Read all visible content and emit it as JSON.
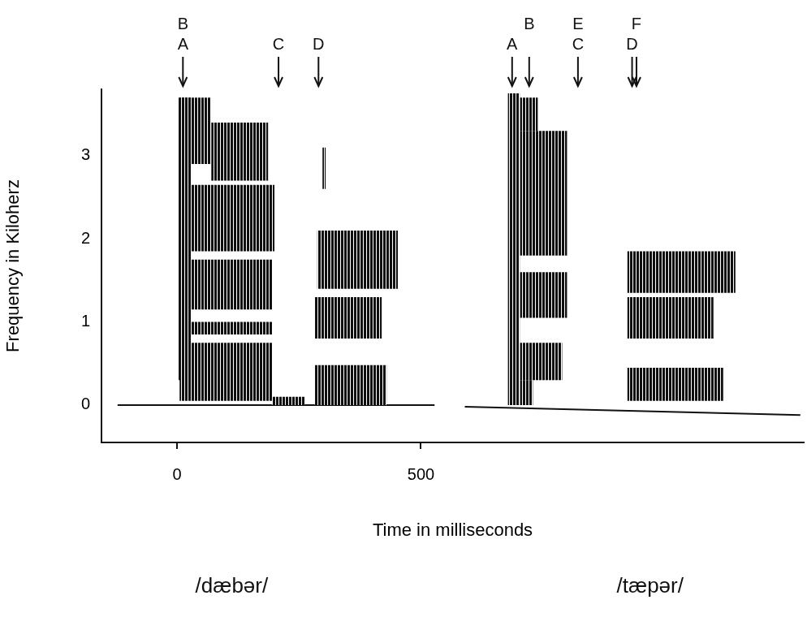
{
  "chart_data": {
    "type": "spectrogram",
    "xlabel": "Time in milliseconds",
    "ylabel": "Frequency in Kiloherz",
    "xlim": [
      -155,
      1285
    ],
    "xticks": [
      0,
      500
    ],
    "ylim": [
      -0.45,
      3.8
    ],
    "yticks": [
      0,
      1,
      2,
      3
    ],
    "grid": false,
    "color": "#111111",
    "regions": [
      {
        "x": [
          3,
          30
        ],
        "y": [
          0.3,
          3.7
        ]
      },
      {
        "x": [
          5,
          195
        ],
        "y": [
          0.05,
          0.75
        ]
      },
      {
        "x": [
          5,
          195
        ],
        "y": [
          0.85,
          1.0
        ]
      },
      {
        "x": [
          5,
          195
        ],
        "y": [
          1.15,
          1.75
        ]
      },
      {
        "x": [
          5,
          200
        ],
        "y": [
          1.85,
          2.65
        ]
      },
      {
        "x": [
          70,
          187
        ],
        "y": [
          2.7,
          3.4
        ]
      },
      {
        "x": [
          5,
          70
        ],
        "y": [
          2.9,
          3.7
        ]
      },
      {
        "x": [
          195,
          262
        ],
        "y": [
          0,
          0.1
        ]
      },
      {
        "x": [
          282,
          430
        ],
        "y": [
          0,
          0.48
        ]
      },
      {
        "x": [
          282,
          420
        ],
        "y": [
          0.8,
          1.3
        ]
      },
      {
        "x": [
          287,
          453
        ],
        "y": [
          1.4,
          2.1
        ]
      },
      {
        "x": [
          298,
          305
        ],
        "y": [
          2.6,
          3.1
        ]
      },
      {
        "x": [
          678,
          703
        ],
        "y": [
          0,
          3.75
        ]
      },
      {
        "x": [
          703,
          730
        ],
        "y": [
          0,
          0.3
        ]
      },
      {
        "x": [
          703,
          790
        ],
        "y": [
          0.3,
          0.75
        ]
      },
      {
        "x": [
          703,
          800
        ],
        "y": [
          1.05,
          1.6
        ]
      },
      {
        "x": [
          703,
          800
        ],
        "y": [
          1.8,
          3.3
        ]
      },
      {
        "x": [
          703,
          740
        ],
        "y": [
          3.3,
          3.7
        ]
      },
      {
        "x": [
          923,
          1120
        ],
        "y": [
          0.05,
          0.45
        ]
      },
      {
        "x": [
          923,
          1100
        ],
        "y": [
          0.8,
          1.3
        ]
      },
      {
        "x": [
          923,
          1145
        ],
        "y": [
          1.35,
          1.85
        ]
      }
    ],
    "traces": [
      {
        "x": [
          -122,
          528
        ],
        "y": [
          0,
          0
        ]
      },
      {
        "x": [
          590,
          1278
        ],
        "y": [
          -0.02,
          -0.12
        ]
      }
    ],
    "annotations": [
      {
        "x": 12,
        "labels": [
          "B",
          "A"
        ]
      },
      {
        "x": 208,
        "labels": [
          "C"
        ]
      },
      {
        "x": 290,
        "labels": [
          "D"
        ]
      },
      {
        "x": 687,
        "labels": [
          "A"
        ]
      },
      {
        "x": 722,
        "labels": [
          "B"
        ]
      },
      {
        "x": 822,
        "labels": [
          "E",
          "C"
        ]
      },
      {
        "x": 933,
        "labels": [
          "D"
        ]
      },
      {
        "x": 942,
        "labels": [
          "F"
        ]
      }
    ],
    "words": [
      {
        "x": 112,
        "text": "/dæbər/"
      },
      {
        "x": 970,
        "text": "/tæpər/"
      }
    ]
  }
}
